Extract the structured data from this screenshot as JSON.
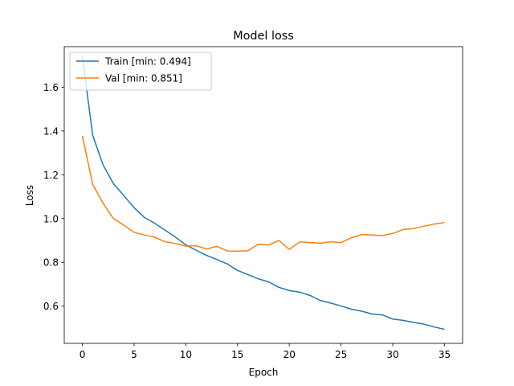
{
  "chart_data": {
    "type": "line",
    "title": "Model loss",
    "xlabel": "Epoch",
    "ylabel": "Loss",
    "xlim": [
      -1.75,
      36.75
    ],
    "ylim": [
      0.43,
      1.785
    ],
    "xticks": [
      0,
      5,
      10,
      15,
      20,
      25,
      30,
      35
    ],
    "yticks": [
      0.6,
      0.8,
      1.0,
      1.2,
      1.4,
      1.6
    ],
    "ytick_labels": [
      "0.6",
      "0.8",
      "1.0",
      "1.2",
      "1.4",
      "1.6"
    ],
    "grid": false,
    "legend_position": "top-left",
    "x": [
      0,
      1,
      2,
      3,
      4,
      5,
      6,
      7,
      8,
      9,
      10,
      11,
      12,
      13,
      14,
      15,
      16,
      17,
      18,
      19,
      20,
      21,
      22,
      23,
      24,
      25,
      26,
      27,
      28,
      29,
      30,
      31,
      32,
      33,
      34,
      35
    ],
    "series": [
      {
        "name": "Train [min: 0.494]",
        "color": "#1f77b4",
        "values": [
          1.74,
          1.38,
          1.245,
          1.16,
          1.105,
          1.05,
          1.005,
          0.978,
          0.947,
          0.915,
          0.88,
          0.855,
          0.832,
          0.813,
          0.793,
          0.763,
          0.744,
          0.725,
          0.711,
          0.686,
          0.671,
          0.664,
          0.649,
          0.626,
          0.614,
          0.601,
          0.586,
          0.577,
          0.564,
          0.56,
          0.541,
          0.535,
          0.526,
          0.518,
          0.505,
          0.494
        ]
      },
      {
        "name": "Val [min: 0.851]",
        "color": "#ff7f0e",
        "values": [
          1.378,
          1.156,
          1.07,
          1.0,
          0.97,
          0.937,
          0.925,
          0.915,
          0.894,
          0.886,
          0.874,
          0.876,
          0.861,
          0.873,
          0.852,
          0.851,
          0.853,
          0.883,
          0.879,
          0.9,
          0.859,
          0.893,
          0.891,
          0.887,
          0.894,
          0.89,
          0.912,
          0.927,
          0.925,
          0.922,
          0.932,
          0.95,
          0.954,
          0.965,
          0.975,
          0.982
        ]
      }
    ]
  }
}
